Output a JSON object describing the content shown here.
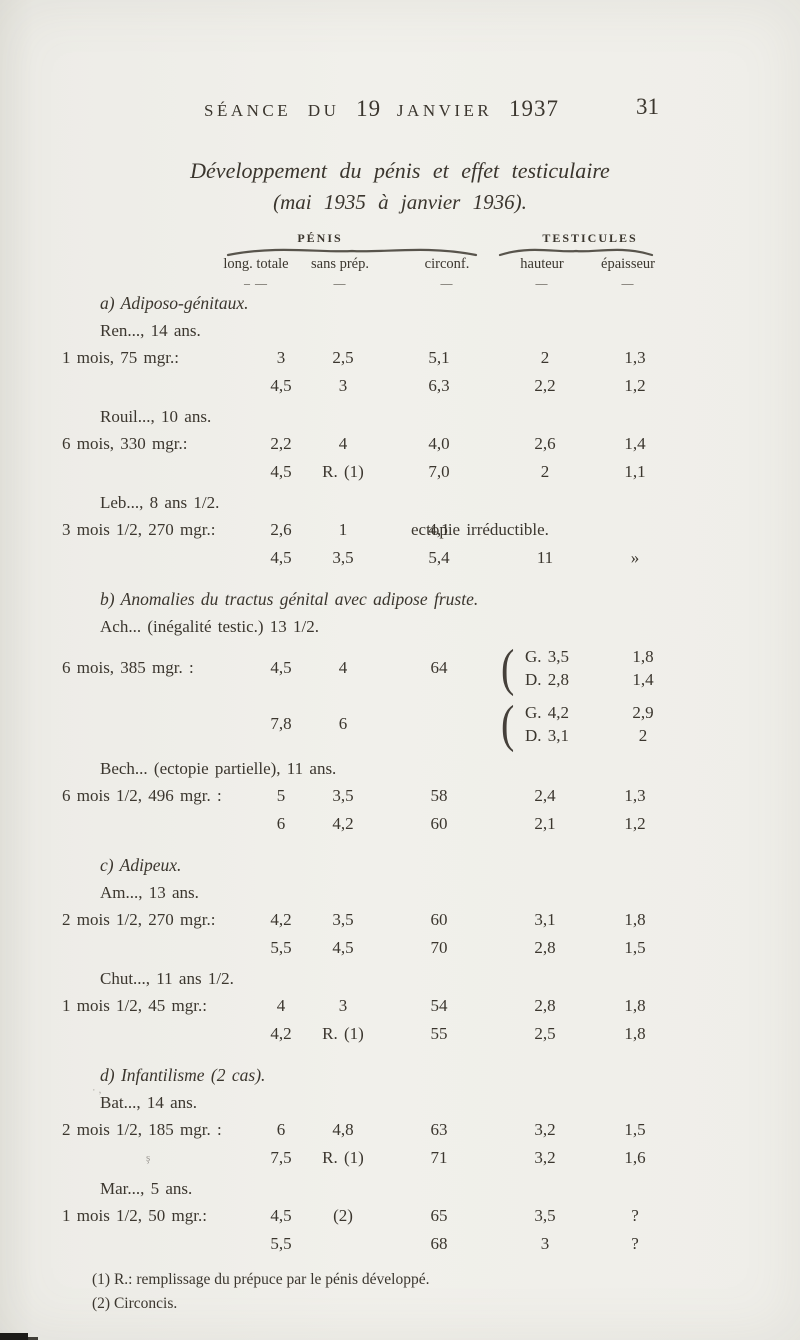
{
  "header": {
    "parts": [
      {
        "text": "SÉANCE DU",
        "style": "sc"
      },
      {
        "text": "19",
        "style": "num"
      },
      {
        "text": "JANVIER",
        "style": "sc"
      },
      {
        "text": "1937",
        "style": "num"
      }
    ],
    "page_number": "31"
  },
  "title": {
    "line1": "Développement du pénis et effet testiculaire",
    "line2": "(mai 1935 à janvier 1936)."
  },
  "table_head": {
    "groups": [
      {
        "label": "PÉNIS"
      },
      {
        "label": "TESTICULES"
      }
    ],
    "columns": [
      "long. totale",
      "sans prép.",
      "circonf.",
      "hauteur",
      "épaisseur"
    ],
    "dashes": [
      "– —",
      "—",
      "—",
      "—",
      "—"
    ]
  },
  "sections": [
    {
      "heading": "a) Adiposo-génitaux.",
      "cases": [
        {
          "name": "Ren..., 14 ans.",
          "rows": [
            {
              "label": "1 mois, 75 mgr.:",
              "cells": [
                "3",
                "2,5",
                "5,1",
                "2",
                "1,3"
              ]
            },
            {
              "label": "",
              "cells": [
                "4,5",
                "3",
                "6,3",
                "2,2",
                "1,2"
              ]
            }
          ]
        },
        {
          "name": "Rouil..., 10 ans.",
          "rows": [
            {
              "label": "6 mois, 330 mgr.:",
              "cells": [
                "2,2",
                "4",
                "4,0",
                "2,6",
                "1,4"
              ]
            },
            {
              "label": "",
              "cells": [
                "4,5",
                "R. (1)",
                "7,0",
                "2",
                "1,1"
              ]
            }
          ]
        },
        {
          "name": "Leb..., 8 ans 1/2.",
          "rows": [
            {
              "label": "3 mois 1/2, 270 mgr.:",
              "cells": [
                "2,6",
                "1",
                "4,1"
              ],
              "note": "ectopie irréductible."
            },
            {
              "label": "",
              "cells": [
                "4,5",
                "3,5",
                "5,4",
                "11",
                "»"
              ]
            }
          ]
        }
      ]
    },
    {
      "heading": "b) Anomalies du tractus génital avec adipose fruste.",
      "cases": [
        {
          "name": "Ach... (inégalité testic.) 13 1/2.",
          "rows": [
            {
              "label": "6 mois, 385 mgr. :",
              "cells": [
                "4,5",
                "4",
                "64"
              ],
              "brace": [
                [
                  "G. 3,5",
                  "1,8"
                ],
                [
                  "D. 2,8",
                  "1,4"
                ]
              ]
            },
            {
              "label": "",
              "cells": [
                "7,8",
                "6",
                ""
              ],
              "brace": [
                [
                  "G. 4,2",
                  "2,9"
                ],
                [
                  "D. 3,1",
                  "2"
                ]
              ]
            }
          ]
        },
        {
          "name": "Bech... (ectopie partielle), 11 ans.",
          "rows": [
            {
              "label": "6 mois 1/2, 496 mgr. :",
              "cells": [
                "5",
                "3,5",
                "58",
                "2,4",
                "1,3"
              ]
            },
            {
              "label": "",
              "cells": [
                "6",
                "4,2",
                "60",
                "2,1",
                "1,2"
              ]
            }
          ]
        }
      ]
    },
    {
      "heading": "c) Adipeux.",
      "cases": [
        {
          "name": "Am..., 13 ans.",
          "rows": [
            {
              "label": "2 mois 1/2, 270 mgr.:",
              "cells": [
                "4,2",
                "3,5",
                "60",
                "3,1",
                "1,8"
              ]
            },
            {
              "label": "",
              "cells": [
                "5,5",
                "4,5",
                "70",
                "2,8",
                "1,5"
              ]
            }
          ]
        },
        {
          "name": "Chut..., 11 ans 1/2.",
          "rows": [
            {
              "label": "1 mois 1/2, 45 mgr.:",
              "cells": [
                "4",
                "3",
                "54",
                "2,8",
                "1,8"
              ]
            },
            {
              "label": "",
              "cells": [
                "4,2",
                "R. (1)",
                "55",
                "2,5",
                "1,8"
              ]
            }
          ]
        }
      ]
    },
    {
      "heading": "d) Infantilisme (2 cas).",
      "cases": [
        {
          "name": "Bat..., 14 ans.",
          "rows": [
            {
              "label": "2 mois 1/2, 185 mgr. :",
              "cells": [
                "6",
                "4,8",
                "63",
                "3,2",
                "1,5"
              ]
            },
            {
              "label": "",
              "cells": [
                "7,5",
                "R. (1)",
                "71",
                "3,2",
                "1,6"
              ]
            }
          ]
        },
        {
          "name": "Mar..., 5 ans.",
          "rows": [
            {
              "label": "1 mois 1/2, 50 mgr.:",
              "cells": [
                "4,5",
                "(2)",
                "65",
                "3,5",
                "?"
              ]
            },
            {
              "label": "",
              "cells": [
                "5,5",
                "",
                "68",
                "3",
                "?"
              ]
            }
          ]
        }
      ]
    }
  ],
  "footnotes": [
    "(1) R.: remplissage du prépuce par le pénis développé.",
    "(2) Circoncis."
  ],
  "colors": {
    "paper": "#f1f0eb",
    "ink": "#3b362e"
  }
}
